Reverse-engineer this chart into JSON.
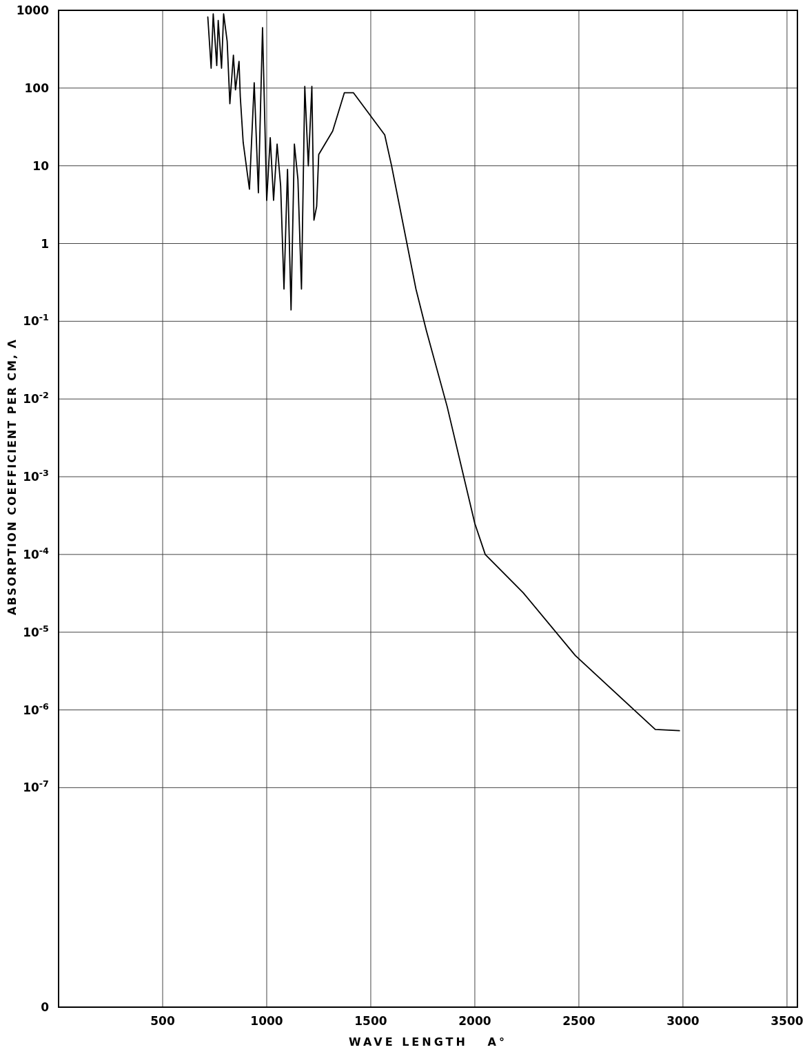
{
  "chart_data": {
    "type": "line",
    "xlabel": "WAVE LENGTH   A°",
    "ylabel": "ABSORPTION COEFFICIENT PER CM, Λ",
    "xlim": [
      0,
      3550
    ],
    "xticks": [
      {
        "value": 0,
        "label": null
      },
      500,
      1000,
      1500,
      2000,
      2500,
      3000,
      3500
    ],
    "ylim": [
      1.5e-10,
      1000
    ],
    "yticks": [
      {
        "value": 1.5e-10,
        "label": "0"
      },
      {
        "value": 1e-07,
        "label": "10$^{-7}$"
      },
      {
        "value": 1e-06,
        "label": "10$^{-6}$"
      },
      {
        "value": 1e-05,
        "label": "10$^{-5}$"
      },
      {
        "value": 0.0001,
        "label": "10$^{-4}$"
      },
      {
        "value": 0.001,
        "label": "10$^{-3}$"
      },
      {
        "value": 0.01,
        "label": "10$^{-2}$"
      },
      {
        "value": 0.1,
        "label": "10$^{-1}$"
      },
      1,
      10,
      100,
      1000
    ],
    "log": true,
    "grid": true,
    "line_style": "solid",
    "color": "#000000",
    "x": [
      717,
      733,
      743,
      760,
      767,
      783,
      793,
      810,
      823,
      840,
      850,
      867,
      873,
      887,
      917,
      940,
      960,
      980,
      1000,
      1017,
      1033,
      1050,
      1067,
      1083,
      1100,
      1117,
      1133,
      1150,
      1167,
      1183,
      1200,
      1217,
      1227,
      1240,
      1250,
      1317,
      1373,
      1417,
      1567,
      1600,
      1717,
      1767,
      1867,
      2000,
      2050,
      2233,
      2483,
      2867,
      2983
    ],
    "values": [
      820,
      180,
      900,
      195,
      740,
      180,
      900,
      400,
      63,
      265,
      95,
      220,
      78,
      20,
      5,
      117,
      4.5,
      600,
      3.6,
      23,
      3.6,
      19,
      5.5,
      0.26,
      9,
      0.14,
      19,
      6.7,
      0.26,
      105,
      10,
      105,
      2,
      3,
      14,
      28,
      87,
      87,
      25,
      10,
      0.26,
      0.076,
      0.008,
      0.00025,
      0.0001,
      3.2e-05,
      5e-06,
      5.6e-07,
      5.4e-07
    ]
  }
}
